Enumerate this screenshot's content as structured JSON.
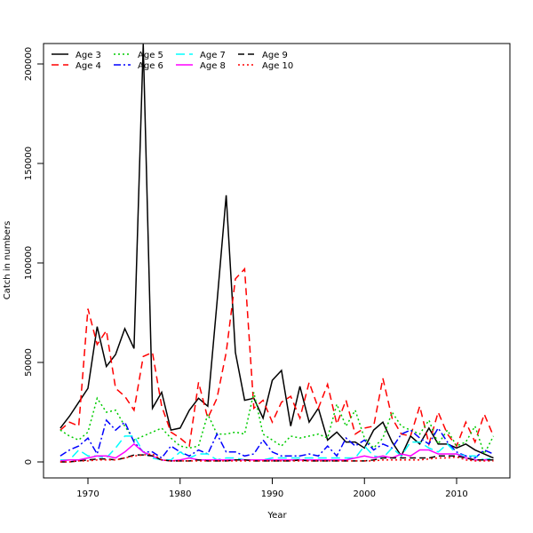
{
  "chart_data": {
    "type": "line",
    "title": "",
    "xlabel": "Year",
    "ylabel": "Catch in numbers",
    "xlim": [
      1967,
      2014
    ],
    "ylim": [
      0,
      210000
    ],
    "xticks": [
      1970,
      1980,
      1990,
      2000,
      2010
    ],
    "yticks": [
      0,
      50000,
      100000,
      150000,
      200000
    ],
    "legend_position": "top-left",
    "x": [
      1967,
      1968,
      1969,
      1970,
      1971,
      1972,
      1973,
      1974,
      1975,
      1976,
      1977,
      1978,
      1979,
      1980,
      1981,
      1982,
      1983,
      1984,
      1985,
      1986,
      1987,
      1988,
      1989,
      1990,
      1991,
      1992,
      1993,
      1994,
      1995,
      1996,
      1997,
      1998,
      1999,
      2000,
      2001,
      2002,
      2003,
      2004,
      2005,
      2006,
      2007,
      2008,
      2009,
      2010,
      2011,
      2012,
      2013,
      2014
    ],
    "series": [
      {
        "name": "Age 3",
        "color": "#000000",
        "dash": "",
        "values": [
          17000,
          23000,
          30000,
          37000,
          68000,
          48000,
          54000,
          67000,
          57000,
          210000,
          27000,
          35000,
          16000,
          17000,
          26000,
          32000,
          28000,
          80000,
          134000,
          55000,
          31000,
          32000,
          22000,
          41000,
          46000,
          18000,
          38000,
          20000,
          27000,
          11000,
          15000,
          10000,
          10000,
          7000,
          16000,
          20000,
          10000,
          3000,
          13000,
          9000,
          17000,
          9000,
          9000,
          7000,
          9000,
          6000,
          4000,
          2000
        ]
      },
      {
        "name": "Age 4",
        "color": "#ff0000",
        "dash": "8,5",
        "values": [
          16000,
          20000,
          18000,
          77000,
          59000,
          66000,
          37000,
          33000,
          26000,
          53000,
          55000,
          28000,
          15000,
          12000,
          8000,
          40000,
          22000,
          32000,
          55000,
          92000,
          97000,
          27000,
          31000,
          20000,
          30000,
          33000,
          22000,
          40000,
          27000,
          39000,
          19000,
          31000,
          14000,
          17000,
          18000,
          42000,
          22000,
          14000,
          13000,
          28000,
          9000,
          25000,
          14000,
          8000,
          20000,
          10000,
          24000,
          13000
        ]
      },
      {
        "name": "Age 5",
        "color": "#00cc00",
        "dash": "2,3",
        "values": [
          16000,
          13000,
          11000,
          15000,
          32000,
          25000,
          26000,
          18000,
          11000,
          13000,
          15000,
          17000,
          12000,
          8000,
          7000,
          8000,
          24000,
          14000,
          14000,
          15000,
          14000,
          35000,
          14000,
          11000,
          8000,
          13000,
          12000,
          13000,
          14000,
          12000,
          29000,
          18000,
          26000,
          12000,
          7000,
          12000,
          25000,
          18000,
          16000,
          14000,
          21000,
          9000,
          16000,
          8000,
          10000,
          18000,
          4000,
          13000
        ]
      },
      {
        "name": "Age 6",
        "color": "#0000ff",
        "dash": "8,3,2,3",
        "values": [
          3000,
          6000,
          8000,
          12000,
          4000,
          21000,
          16000,
          20000,
          10000,
          5000,
          5000,
          2000,
          8000,
          5000,
          3000,
          6000,
          4000,
          14000,
          5000,
          5000,
          3000,
          4000,
          11000,
          5000,
          3000,
          3000,
          3000,
          4000,
          3000,
          8000,
          3000,
          12000,
          8000,
          11000,
          6000,
          9000,
          7000,
          14000,
          16000,
          12000,
          9000,
          17000,
          10000,
          5000,
          3000,
          2000,
          6000,
          4000
        ]
      },
      {
        "name": "Age 7",
        "color": "#00ffff",
        "dash": "10,5",
        "values": [
          1000,
          1000,
          6000,
          3000,
          3000,
          2000,
          7000,
          13000,
          13000,
          5000,
          2000,
          1000,
          1000,
          5000,
          2000,
          4000,
          4000,
          1000,
          2000,
          2000,
          1000,
          1000,
          1000,
          2000,
          2000,
          2000,
          2000,
          2000,
          2000,
          2000,
          2000,
          2000,
          2000,
          8000,
          3000,
          2000,
          7000,
          3000,
          10000,
          10000,
          7000,
          5000,
          9000,
          4000,
          3000,
          3000,
          1000,
          2000
        ]
      },
      {
        "name": "Age 8",
        "color": "#ff00ff",
        "dash": "",
        "values": [
          500,
          1000,
          1000,
          2000,
          3000,
          3000,
          2000,
          5000,
          9000,
          5000,
          3000,
          1000,
          500,
          1000,
          2000,
          1000,
          1000,
          1000,
          1000,
          1000,
          1000,
          1000,
          1000,
          1000,
          1000,
          1000,
          1000,
          1000,
          1000,
          1000,
          1000,
          1000,
          2000,
          3000,
          2000,
          3000,
          2000,
          4000,
          3000,
          6000,
          6000,
          4000,
          4000,
          4000,
          2000,
          1000,
          1000,
          1000
        ]
      },
      {
        "name": "Age 9",
        "color": "#000000",
        "dash": "7,4",
        "values": [
          0,
          0,
          500,
          1000,
          1500,
          1500,
          1000,
          2000,
          3500,
          3500,
          3000,
          1000,
          500,
          500,
          500,
          1000,
          500,
          500,
          500,
          1000,
          1000,
          500,
          500,
          500,
          500,
          500,
          1000,
          500,
          500,
          500,
          500,
          500,
          500,
          500,
          1000,
          2000,
          2000,
          2000,
          2000,
          2000,
          2000,
          3000,
          3000,
          3000,
          2000,
          1000,
          1000,
          1000
        ]
      },
      {
        "name": "Age 10",
        "color": "#ff0000",
        "dash": "2,3",
        "values": [
          0,
          0,
          500,
          500,
          1000,
          1000,
          1000,
          2000,
          3000,
          3500,
          4000,
          1000,
          500,
          500,
          500,
          500,
          500,
          500,
          500,
          500,
          500,
          500,
          500,
          500,
          500,
          500,
          500,
          500,
          500,
          500,
          500,
          500,
          500,
          500,
          500,
          1000,
          1000,
          1000,
          1000,
          1000,
          1500,
          2000,
          2000,
          2500,
          1000,
          500,
          500,
          500
        ]
      }
    ]
  }
}
